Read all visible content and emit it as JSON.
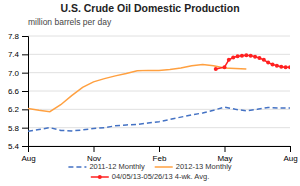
{
  "chart_data": {
    "type": "line",
    "title": "U.S. Crude Oil Domestic Production",
    "subtitle": "million barrels per day",
    "xlim": [
      0,
      12
    ],
    "xticks": [
      {
        "value": 0,
        "label": "Aug"
      },
      {
        "value": 3,
        "label": "Nov"
      },
      {
        "value": 6,
        "label": "Feb"
      },
      {
        "value": 9,
        "label": "May"
      },
      {
        "value": 12,
        "label": "Aug"
      }
    ],
    "ylim": [
      5.4,
      7.8
    ],
    "yticks": [
      5.4,
      5.8,
      6.2,
      6.6,
      {
        "value": 7.0,
        "label": "7.0"
      },
      7.4,
      7.8
    ],
    "grid": true,
    "legend": "bottom",
    "series": [
      {
        "name": "2011-12 Monthly",
        "color": "#4472C4",
        "line_style": "dashed",
        "x": [
          0,
          0.5,
          1,
          1.5,
          2,
          2.5,
          3,
          3.5,
          4,
          4.5,
          5,
          5.5,
          6,
          6.5,
          7,
          7.5,
          8,
          8.5,
          9,
          9.5,
          10,
          10.5,
          11,
          11.5,
          12
        ],
        "values": [
          5.72,
          5.76,
          5.8,
          5.74,
          5.73,
          5.75,
          5.78,
          5.8,
          5.84,
          5.86,
          5.87,
          5.9,
          5.93,
          5.98,
          6.03,
          6.08,
          6.12,
          6.18,
          6.25,
          6.2,
          6.17,
          6.2,
          6.24,
          6.23,
          6.23
        ]
      },
      {
        "name": "2012-13 Monthly",
        "color": "#FFA040",
        "line_style": "solid",
        "x": [
          0,
          0.5,
          1,
          1.5,
          2,
          2.5,
          3,
          3.5,
          4,
          4.5,
          5,
          5.5,
          6,
          6.5,
          7,
          7.5,
          8,
          8.5,
          9,
          9.5,
          10
        ],
        "values": [
          6.22,
          6.18,
          6.15,
          6.3,
          6.5,
          6.68,
          6.8,
          6.87,
          6.93,
          6.98,
          7.04,
          7.05,
          7.05,
          7.07,
          7.1,
          7.15,
          7.18,
          7.15,
          7.1,
          7.09,
          7.08
        ]
      },
      {
        "name": "04/05/13-05/26/13 4-wk. Avg.",
        "color": "#FF2020",
        "line_style": "solid",
        "marker": "circle",
        "x": [
          8.6,
          9.0,
          9.2,
          9.4,
          9.6,
          9.8,
          10.0,
          10.2,
          10.4,
          10.6,
          10.8,
          11.0,
          11.2,
          11.4,
          11.6,
          11.8,
          12.0
        ],
        "values": [
          7.08,
          7.12,
          7.28,
          7.33,
          7.36,
          7.37,
          7.38,
          7.37,
          7.35,
          7.32,
          7.28,
          7.22,
          7.18,
          7.15,
          7.13,
          7.12,
          7.12
        ]
      }
    ]
  }
}
